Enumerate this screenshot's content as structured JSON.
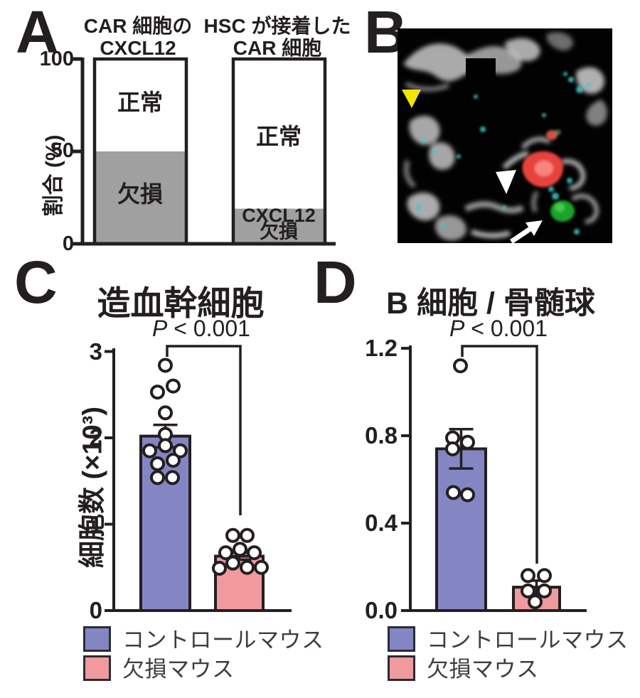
{
  "panels": {
    "a": {
      "letter": "A"
    },
    "b": {
      "letter": "B",
      "colors": {
        "yellow_arrowhead": "#F3E600",
        "white_markers": "#FFFFFF",
        "red_cell": "#E8433C",
        "green_cell": "#1CA32A"
      }
    },
    "c": {
      "letter": "C"
    },
    "d": {
      "letter": "D"
    }
  },
  "legend": {
    "items": [
      {
        "label": "コントロールマウス",
        "color": "#8486C4"
      },
      {
        "label": "欠損マウス",
        "color": "#F19A9E"
      }
    ]
  },
  "chart_data": [
    {
      "type": "bar",
      "subtype": "stacked-100percent",
      "panel": "A",
      "title_lines": [
        [
          "CAR 細胞の",
          "CXCL12"
        ],
        [
          "HSC が接着した",
          "CAR 細胞"
        ]
      ],
      "ylabel": "割合 (%)",
      "ylim": [
        0,
        100
      ],
      "ytick_labels": [
        "0",
        "50",
        "100"
      ],
      "series": [
        {
          "name": "欠損",
          "color": "#A0A0A0",
          "values": [
            50,
            19
          ]
        },
        {
          "name": "正常",
          "color": "#FFFFFF",
          "values": [
            50,
            81
          ]
        }
      ],
      "segment_labels": {
        "bar1_normal": "正常",
        "bar1_deficient": "欠損",
        "bar2_normal": "正常",
        "bar2_deficient_line1": "CXCL12",
        "bar2_deficient_line2": "欠損"
      }
    },
    {
      "type": "bar",
      "panel": "C",
      "title": "造血幹細胞",
      "ylabel": "細胞数 (×10³)",
      "ylim": [
        0,
        3
      ],
      "ytick_labels": [
        "0",
        "1",
        "2",
        "3"
      ],
      "annotation_parts": [
        "P",
        " < 0.001"
      ],
      "groups": [
        "コントロールマウス",
        "欠損マウス"
      ],
      "series": [
        {
          "name": "コントロールマウス",
          "color": "#8486C4",
          "mean": 2.02,
          "sem": 0.13,
          "points": [
            2.84,
            2.6,
            2.53,
            2.29,
            2.04,
            1.91,
            1.85,
            1.85,
            1.74,
            1.7,
            1.54,
            1.54
          ]
        },
        {
          "name": "欠損マウス",
          "color": "#F19A9E",
          "mean": 0.63,
          "sem": 0.04,
          "points": [
            0.87,
            0.87,
            0.71,
            0.67,
            0.67,
            0.55,
            0.5,
            0.5,
            0.49
          ]
        }
      ]
    },
    {
      "type": "bar",
      "panel": "D",
      "title": "B 細胞 / 骨髄球",
      "ylabel": "",
      "ylim": [
        0,
        1.2
      ],
      "ytick_labels": [
        "0.0",
        "0.4",
        "0.8",
        "1.2"
      ],
      "annotation_parts": [
        "P",
        " < 0.001"
      ],
      "groups": [
        "コントロールマウス",
        "欠損マウス"
      ],
      "series": [
        {
          "name": "コントロールマウス",
          "color": "#8486C4",
          "mean": 0.74,
          "sem": 0.09,
          "points": [
            1.12,
            0.79,
            0.77,
            0.74,
            0.54,
            0.53
          ]
        },
        {
          "name": "欠損マウス",
          "color": "#F19A9E",
          "mean": 0.107,
          "sem": 0.03,
          "points": [
            0.16,
            0.16,
            0.09,
            0.09,
            0.04
          ]
        }
      ]
    }
  ]
}
